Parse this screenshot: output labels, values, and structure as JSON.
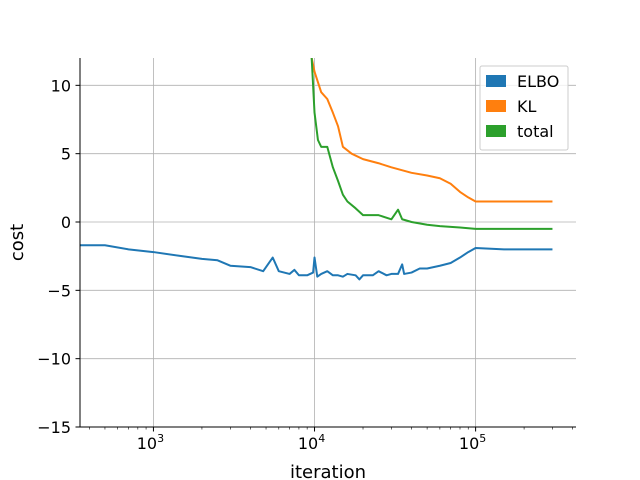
{
  "chart_data": {
    "type": "line",
    "title": "",
    "xlabel": "iteration",
    "ylabel": "cost",
    "xscale": "log",
    "xlim": [
      350,
      420000
    ],
    "ylim": [
      -15,
      12
    ],
    "x_ticks": [
      {
        "value": 1000,
        "base": "10",
        "exp": "3"
      },
      {
        "value": 10000,
        "base": "10",
        "exp": "4"
      },
      {
        "value": 100000,
        "base": "10",
        "exp": "5"
      }
    ],
    "y_ticks": [
      {
        "value": -15,
        "label": "−15"
      },
      {
        "value": -10,
        "label": "−10"
      },
      {
        "value": -5,
        "label": "−5"
      },
      {
        "value": 0,
        "label": "0"
      },
      {
        "value": 5,
        "label": "5"
      },
      {
        "value": 10,
        "label": "10"
      }
    ],
    "grid": true,
    "legend": {
      "position": "top-right",
      "entries": [
        "ELBO",
        "KL",
        "total"
      ]
    },
    "series": [
      {
        "name": "ELBO",
        "color": "#1f77b4",
        "points": [
          [
            350,
            -1.7
          ],
          [
            500,
            -1.7
          ],
          [
            700,
            -2.0
          ],
          [
            1000,
            -2.2
          ],
          [
            1500,
            -2.5
          ],
          [
            2000,
            -2.7
          ],
          [
            2500,
            -2.8
          ],
          [
            3000,
            -3.2
          ],
          [
            4000,
            -3.3
          ],
          [
            4800,
            -3.6
          ],
          [
            5500,
            -2.6
          ],
          [
            6000,
            -3.6
          ],
          [
            7000,
            -3.8
          ],
          [
            7500,
            -3.5
          ],
          [
            8000,
            -3.9
          ],
          [
            9000,
            -3.9
          ],
          [
            9800,
            -3.7
          ],
          [
            10000,
            -2.6
          ],
          [
            10400,
            -4.0
          ],
          [
            11000,
            -3.8
          ],
          [
            12000,
            -3.6
          ],
          [
            13000,
            -3.9
          ],
          [
            14000,
            -3.9
          ],
          [
            15000,
            -4.0
          ],
          [
            16000,
            -3.8
          ],
          [
            18000,
            -3.9
          ],
          [
            19000,
            -4.2
          ],
          [
            20000,
            -3.9
          ],
          [
            23000,
            -3.9
          ],
          [
            25000,
            -3.6
          ],
          [
            28000,
            -3.9
          ],
          [
            30000,
            -3.8
          ],
          [
            33000,
            -3.8
          ],
          [
            35000,
            -3.1
          ],
          [
            36000,
            -3.8
          ],
          [
            40000,
            -3.7
          ],
          [
            45000,
            -3.4
          ],
          [
            50000,
            -3.4
          ],
          [
            60000,
            -3.2
          ],
          [
            70000,
            -3.0
          ],
          [
            80000,
            -2.6
          ],
          [
            90000,
            -2.2
          ],
          [
            100000,
            -1.9
          ],
          [
            150000,
            -2.0
          ],
          [
            200000,
            -2.0
          ],
          [
            300000,
            -2.0
          ]
        ]
      },
      {
        "name": "KL",
        "color": "#ff7f0e",
        "points": [
          [
            9600,
            12.0
          ],
          [
            10000,
            11.0
          ],
          [
            11000,
            9.5
          ],
          [
            12000,
            9.0
          ],
          [
            13000,
            8.0
          ],
          [
            14000,
            7.0
          ],
          [
            15000,
            5.5
          ],
          [
            17000,
            5.0
          ],
          [
            20000,
            4.6
          ],
          [
            25000,
            4.3
          ],
          [
            30000,
            4.0
          ],
          [
            40000,
            3.6
          ],
          [
            50000,
            3.4
          ],
          [
            60000,
            3.2
          ],
          [
            70000,
            2.8
          ],
          [
            80000,
            2.2
          ],
          [
            90000,
            1.8
          ],
          [
            100000,
            1.5
          ],
          [
            120000,
            1.5
          ],
          [
            150000,
            1.5
          ],
          [
            200000,
            1.5
          ],
          [
            300000,
            1.5
          ]
        ]
      },
      {
        "name": "total",
        "color": "#2ca02c",
        "points": [
          [
            9600,
            12.0
          ],
          [
            10000,
            8.0
          ],
          [
            10500,
            6.0
          ],
          [
            11000,
            5.5
          ],
          [
            12000,
            5.5
          ],
          [
            13000,
            4.0
          ],
          [
            14000,
            3.0
          ],
          [
            15000,
            2.0
          ],
          [
            16000,
            1.5
          ],
          [
            18000,
            1.0
          ],
          [
            20000,
            0.5
          ],
          [
            25000,
            0.5
          ],
          [
            30000,
            0.2
          ],
          [
            33000,
            0.9
          ],
          [
            35000,
            0.2
          ],
          [
            40000,
            0.0
          ],
          [
            50000,
            -0.2
          ],
          [
            60000,
            -0.3
          ],
          [
            80000,
            -0.4
          ],
          [
            100000,
            -0.5
          ],
          [
            150000,
            -0.5
          ],
          [
            200000,
            -0.5
          ],
          [
            300000,
            -0.5
          ]
        ]
      }
    ]
  }
}
